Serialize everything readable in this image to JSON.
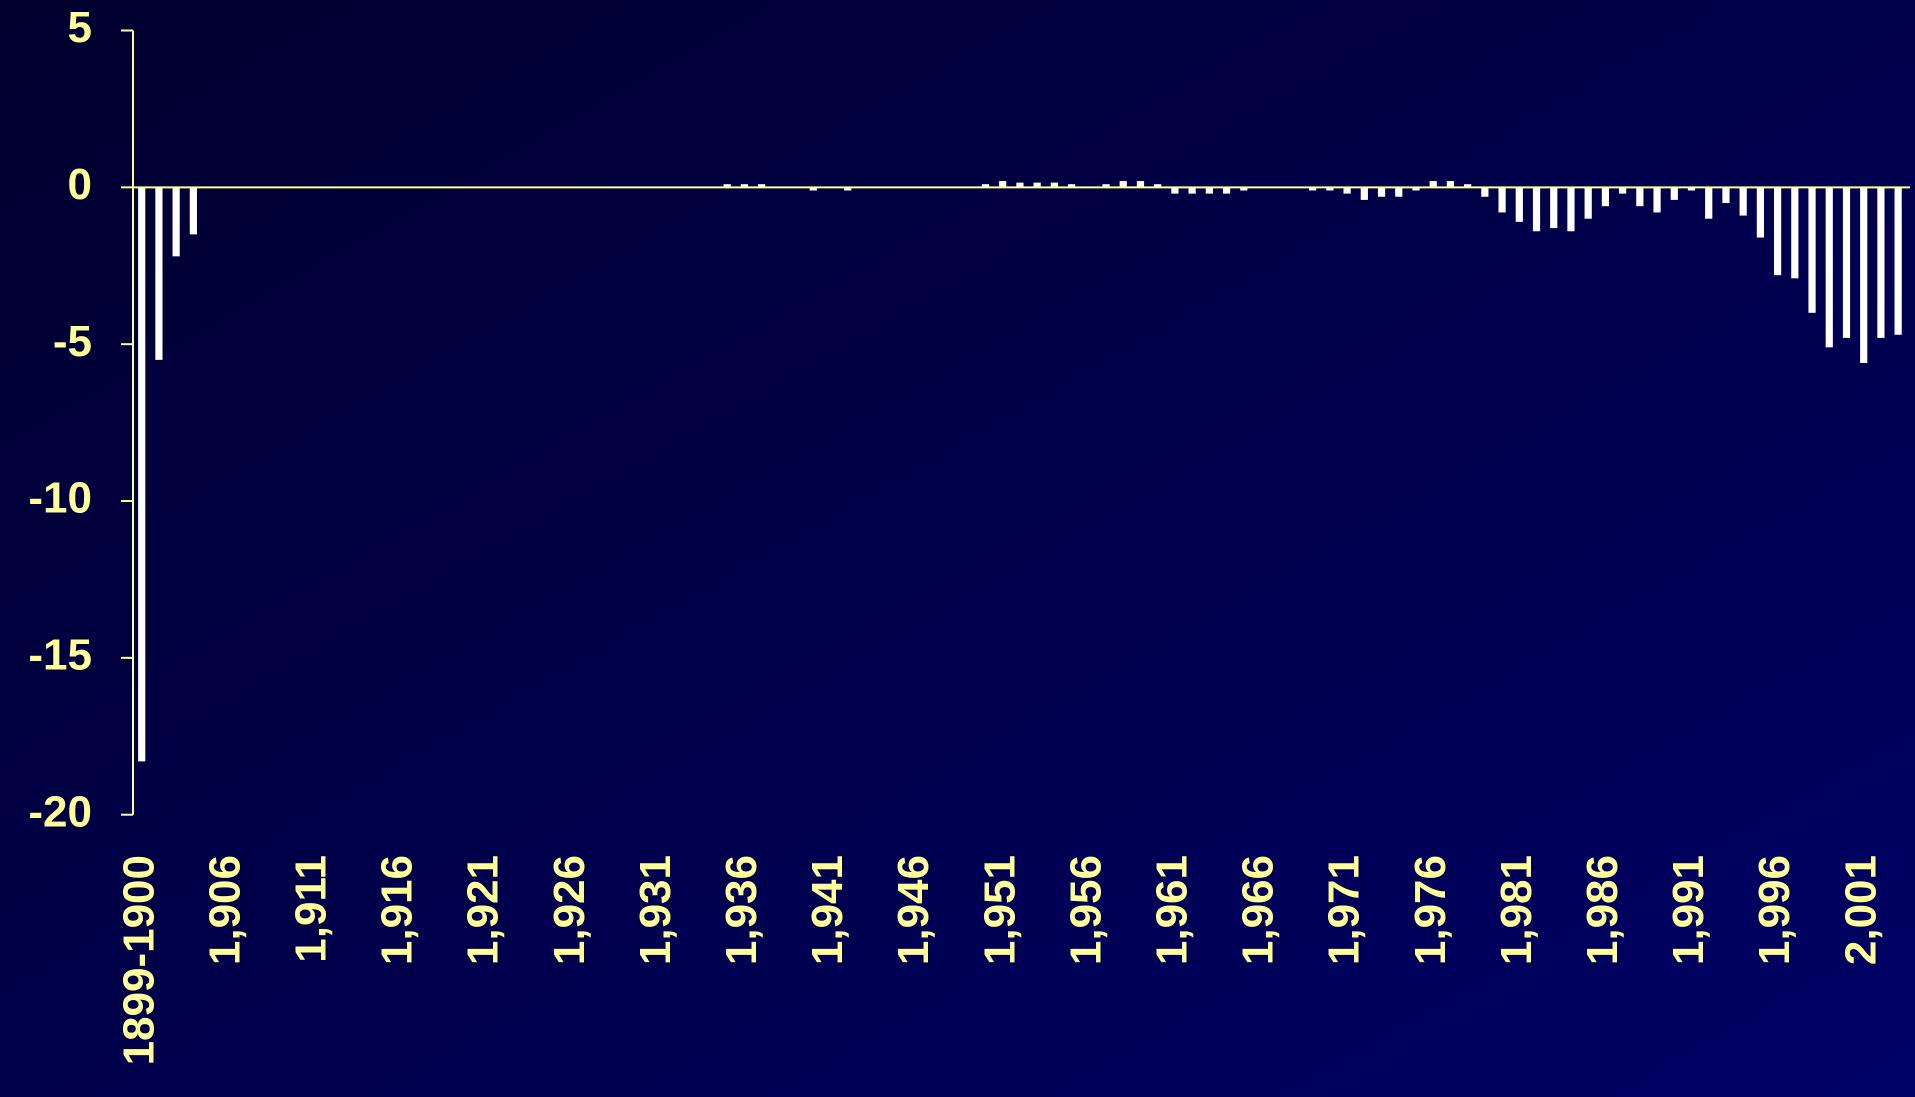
{
  "chart_data": {
    "type": "bar",
    "categories": [
      "1899-1900",
      null,
      null,
      null,
      null,
      "1,906",
      null,
      null,
      null,
      null,
      "1,911",
      null,
      null,
      null,
      null,
      "1,916",
      null,
      null,
      null,
      null,
      "1,921",
      null,
      null,
      null,
      null,
      "1,926",
      null,
      null,
      null,
      null,
      "1,931",
      null,
      null,
      null,
      null,
      "1,936",
      null,
      null,
      null,
      null,
      "1,941",
      null,
      null,
      null,
      null,
      "1,946",
      null,
      null,
      null,
      null,
      "1,951",
      null,
      null,
      null,
      null,
      "1,956",
      null,
      null,
      null,
      null,
      "1,961",
      null,
      null,
      null,
      null,
      "1,966",
      null,
      null,
      null,
      null,
      "1,971",
      null,
      null,
      null,
      null,
      "1,976",
      null,
      null,
      null,
      null,
      "1,981",
      null,
      null,
      null,
      null,
      "1,986",
      null,
      null,
      null,
      null,
      "1,991",
      null,
      null,
      null,
      null,
      "1,996",
      null,
      null,
      null,
      null,
      "2,001",
      null,
      null
    ],
    "values": [
      -18.3,
      -5.5,
      -2.2,
      -1.5,
      0,
      0,
      0,
      0,
      0,
      0,
      0,
      0,
      0,
      0,
      0,
      0,
      0,
      0,
      0,
      0,
      0,
      0,
      0,
      0,
      0,
      0,
      0,
      0,
      0,
      0,
      0,
      0,
      0,
      0,
      0.1,
      0.1,
      0.1,
      0,
      0,
      -0.1,
      0,
      -0.1,
      0,
      0,
      0,
      0,
      0,
      0,
      0,
      0.1,
      0.2,
      0.15,
      0.15,
      0.15,
      0.1,
      0,
      0.1,
      0.2,
      0.2,
      0.1,
      -0.2,
      -0.2,
      -0.2,
      -0.2,
      -0.1,
      0,
      0,
      0,
      -0.1,
      -0.1,
      -0.2,
      -0.4,
      -0.3,
      -0.3,
      -0.1,
      0.2,
      0.2,
      0.1,
      -0.3,
      -0.8,
      -1.1,
      -1.4,
      -1.3,
      -1.4,
      -1.0,
      -0.6,
      -0.2,
      -0.6,
      -0.8,
      -0.4,
      -0.1,
      -1.0,
      -0.5,
      -0.9,
      -1.6,
      -2.8,
      -2.9,
      -4.0,
      -5.1,
      -4.8,
      -5.6,
      -4.8,
      -4.7
    ],
    "color": "#ffffff",
    "ylim": [
      -20,
      5
    ],
    "yticks": [
      5,
      0,
      -5,
      -10,
      -15,
      -20
    ]
  }
}
